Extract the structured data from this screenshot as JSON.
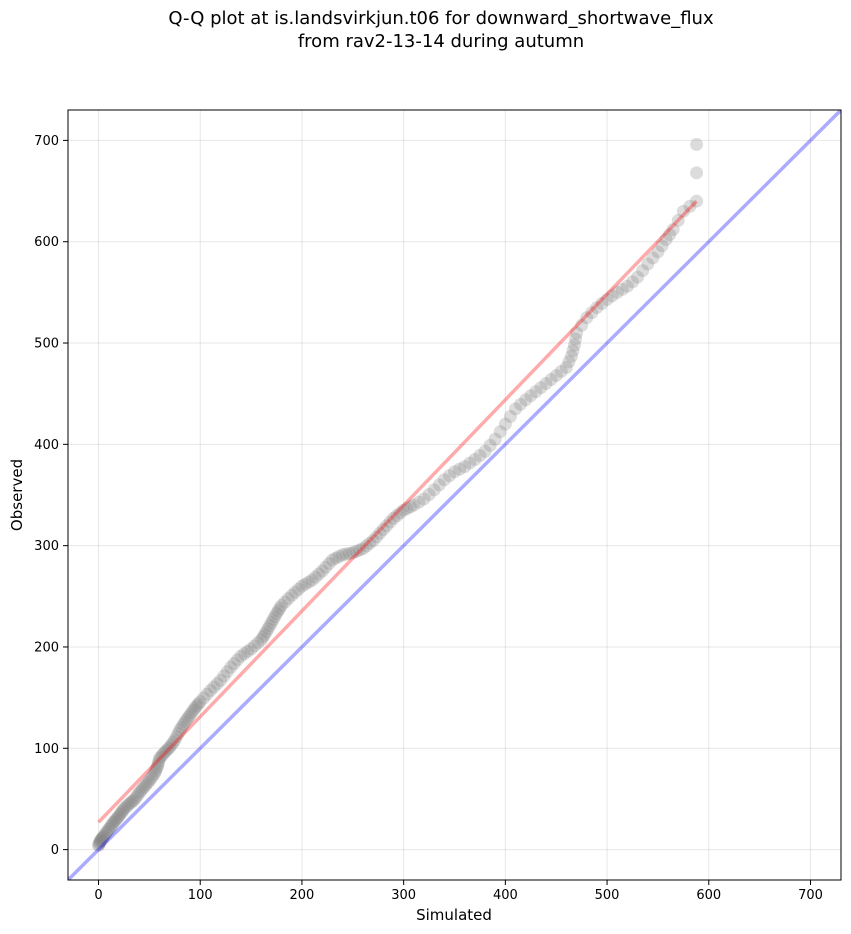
{
  "chart_data": {
    "type": "scatter",
    "title_line1": "Q-Q plot at is.landsvirkjun.t06 for downward_shortwave_flux",
    "title_line2": "from rav2-13-14 during autumn",
    "xlabel": "Simulated",
    "ylabel": "Observed",
    "xlim": [
      -30,
      730
    ],
    "ylim": [
      -30,
      730
    ],
    "x_ticks": [
      0,
      100,
      200,
      300,
      400,
      500,
      600,
      700
    ],
    "y_ticks": [
      0,
      100,
      200,
      300,
      400,
      500,
      600,
      700
    ],
    "x_tick_labels": [
      "0",
      "100",
      "200",
      "300",
      "400",
      "500",
      "600",
      "700"
    ],
    "y_tick_labels": [
      "0",
      "100",
      "200",
      "300",
      "400",
      "500",
      "600",
      "700"
    ],
    "grid": true,
    "reference_line": {
      "color": "#0000ff",
      "from": [
        -30,
        -30
      ],
      "to": [
        730,
        730
      ]
    },
    "fit_line": {
      "color": "#ff0000",
      "from": [
        0,
        27
      ],
      "to": [
        588,
        640
      ]
    },
    "points": {
      "color": "#808080",
      "anchors": [
        [
          0,
          4
        ],
        [
          2,
          9
        ],
        [
          5,
          13
        ],
        [
          10,
          20
        ],
        [
          15,
          27
        ],
        [
          20,
          33
        ],
        [
          25,
          40
        ],
        [
          30,
          45
        ],
        [
          35,
          49
        ],
        [
          40,
          56
        ],
        [
          45,
          62
        ],
        [
          50,
          68
        ],
        [
          55,
          75
        ],
        [
          58,
          82
        ],
        [
          60,
          90
        ],
        [
          65,
          96
        ],
        [
          70,
          101
        ],
        [
          75,
          108
        ],
        [
          80,
          118
        ],
        [
          85,
          126
        ],
        [
          90,
          133
        ],
        [
          95,
          140
        ],
        [
          100,
          146
        ],
        [
          110,
          157
        ],
        [
          120,
          167
        ],
        [
          130,
          180
        ],
        [
          140,
          191
        ],
        [
          150,
          198
        ],
        [
          160,
          207
        ],
        [
          165,
          215
        ],
        [
          170,
          224
        ],
        [
          175,
          233
        ],
        [
          180,
          241
        ],
        [
          190,
          251
        ],
        [
          200,
          260
        ],
        [
          210,
          266
        ],
        [
          220,
          275
        ],
        [
          230,
          286
        ],
        [
          240,
          291
        ],
        [
          250,
          293
        ],
        [
          260,
          297
        ],
        [
          270,
          305
        ],
        [
          280,
          316
        ],
        [
          290,
          327
        ],
        [
          300,
          335
        ],
        [
          310,
          340
        ],
        [
          320,
          346
        ],
        [
          330,
          355
        ],
        [
          340,
          365
        ],
        [
          350,
          373
        ],
        [
          360,
          378
        ],
        [
          370,
          385
        ],
        [
          380,
          393
        ],
        [
          390,
          405
        ],
        [
          400,
          420
        ],
        [
          410,
          435
        ],
        [
          420,
          444
        ],
        [
          430,
          452
        ],
        [
          440,
          460
        ],
        [
          450,
          468
        ],
        [
          460,
          476
        ],
        [
          465,
          487
        ],
        [
          468,
          498
        ],
        [
          470,
          510
        ],
        [
          480,
          525
        ],
        [
          490,
          535
        ],
        [
          500,
          543
        ],
        [
          510,
          550
        ],
        [
          520,
          556
        ],
        [
          530,
          565
        ],
        [
          540,
          578
        ],
        [
          550,
          590
        ],
        [
          558,
          602
        ],
        [
          565,
          612
        ],
        [
          575,
          630
        ],
        [
          588,
          640
        ],
        [
          588,
          696
        ]
      ]
    }
  }
}
